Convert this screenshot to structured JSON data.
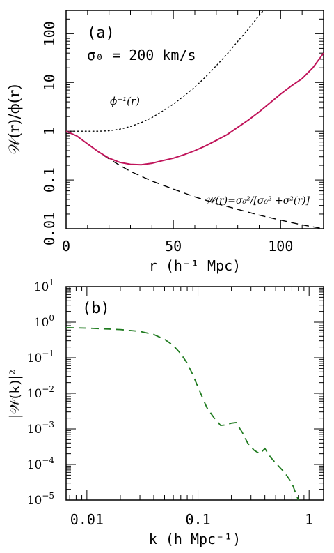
{
  "chart_data": [
    {
      "id": "a",
      "type": "line",
      "panel_label": "(a)",
      "annotation": "σ₀ = 200 km/s",
      "xlabel": "r (h⁻¹ Mpc)",
      "ylabel": "𝒲(r)/ϕ(r)",
      "xlim": [
        0,
        120
      ],
      "ylim": [
        0.01,
        300
      ],
      "yscale": "log",
      "xticks": [
        0,
        50,
        100
      ],
      "xticklabels": [
        "0",
        "50",
        "100"
      ],
      "yticks": [
        0.01,
        0.1,
        1,
        10,
        100
      ],
      "yticklabels": [
        "0.01",
        "0.1",
        "1",
        "10",
        "100"
      ],
      "series": [
        {
          "name": "ϕ⁻¹(r)",
          "style": "dotted",
          "color": "#000000",
          "x": [
            0,
            5,
            10,
            15,
            20,
            25,
            30,
            35,
            40,
            45,
            50,
            55,
            60,
            65,
            70,
            75,
            80,
            85,
            90,
            92
          ],
          "y": [
            1.0,
            1.0,
            1.0,
            1.0,
            1.02,
            1.1,
            1.25,
            1.5,
            1.9,
            2.6,
            3.6,
            5.3,
            8.0,
            13,
            22,
            38,
            70,
            125,
            240,
            300
          ]
        },
        {
          "name": "𝒲(r)=σ₀²/[σ₀² +σ²(r)]",
          "style": "dashed",
          "color": "#000000",
          "x": [
            0,
            5,
            10,
            15,
            20,
            25,
            30,
            40,
            50,
            60,
            70,
            80,
            90,
            100,
            110,
            120
          ],
          "y": [
            1.0,
            0.8,
            0.55,
            0.38,
            0.27,
            0.2,
            0.15,
            0.095,
            0.065,
            0.045,
            0.033,
            0.025,
            0.019,
            0.015,
            0.012,
            0.01
          ]
        },
        {
          "name": "",
          "style": "solid",
          "color": "#c0145a",
          "x": [
            0,
            5,
            10,
            15,
            20,
            25,
            30,
            35,
            40,
            45,
            50,
            55,
            60,
            65,
            70,
            75,
            80,
            85,
            90,
            95,
            100,
            105,
            110,
            115,
            120
          ],
          "y": [
            1.0,
            0.8,
            0.55,
            0.38,
            0.28,
            0.23,
            0.21,
            0.205,
            0.22,
            0.25,
            0.28,
            0.33,
            0.4,
            0.5,
            0.65,
            0.85,
            1.2,
            1.7,
            2.5,
            3.8,
            5.8,
            8.5,
            12,
            20,
            40
          ]
        }
      ],
      "annotations": [
        {
          "text": "ϕ⁻¹(r)",
          "x": 23,
          "y": 4.8
        },
        {
          "text": "𝒲(r)=σ₀²/[σ₀² +σ²(r)]",
          "x": 112,
          "y": 0.045
        }
      ]
    },
    {
      "id": "b",
      "type": "line",
      "panel_label": "(b)",
      "xlabel": "k (h Mpc⁻¹)",
      "ylabel": "|𝒲(k)|²",
      "xlim": [
        0.0065,
        1.35
      ],
      "ylim": [
        1e-05,
        10
      ],
      "xscale": "log",
      "yscale": "log",
      "xticks": [
        0.01,
        0.1,
        1
      ],
      "xticklabels": [
        "0.01",
        "0.1",
        "1"
      ],
      "yticks": [
        1e-05,
        0.0001,
        0.001,
        0.01,
        0.1,
        1,
        10
      ],
      "ytick_exponents": [
        "−5",
        "−4",
        "−3",
        "−2",
        "−1",
        "0",
        "1"
      ],
      "series": [
        {
          "name": "",
          "style": "dashed",
          "color": "#1e7a1e",
          "x": [
            0.0065,
            0.01,
            0.02,
            0.03,
            0.04,
            0.05,
            0.06,
            0.07,
            0.08,
            0.09,
            0.1,
            0.11,
            0.12,
            0.14,
            0.16,
            0.18,
            0.2,
            0.22,
            0.25,
            0.28,
            0.32,
            0.36,
            0.4,
            0.45,
            0.5,
            0.6,
            0.7,
            0.8
          ],
          "y": [
            0.7,
            0.68,
            0.62,
            0.55,
            0.45,
            0.33,
            0.22,
            0.13,
            0.07,
            0.033,
            0.015,
            0.0075,
            0.004,
            0.002,
            0.00125,
            0.0013,
            0.00145,
            0.0015,
            0.0008,
            0.0004,
            0.00025,
            0.0002,
            0.00028,
            0.00016,
            0.00011,
            6e-05,
            3e-05,
            1e-05
          ]
        }
      ]
    }
  ]
}
